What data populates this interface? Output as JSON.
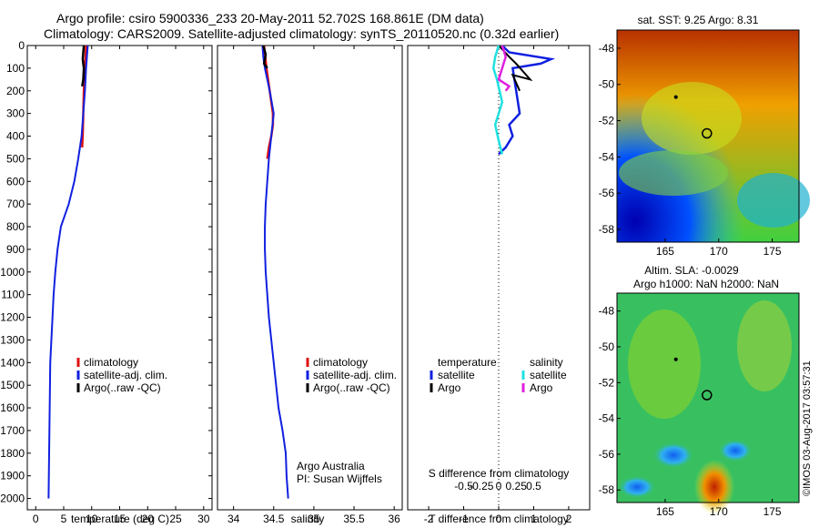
{
  "header": {
    "line1": "Argo profile: csiro 5900336_233 20-May-2011 52.702S 168.861E (DM data)",
    "line2": "Climatology: CARS2009. Satellite-adjusted climatology: synTS_20110520.nc (0.32d earlier)"
  },
  "colors": {
    "climatology": "#e01010",
    "satellite": "#1020e0",
    "argo": "#000000",
    "salinity_satellite": "#20e0e0",
    "salinity_argo": "#e020e0"
  },
  "legend": {
    "climatology": "climatology",
    "satellite_adj": "satellite-adj. clim.",
    "argo_raw": "Argo(..raw -QC)",
    "diff_temperature": "temperature",
    "diff_salinity": "salinity",
    "diff_satellite": "satellite",
    "diff_argo": "Argo"
  },
  "annotations": {
    "argo_australia": "Argo Australia",
    "pi": "PI: Susan Wijffels",
    "imos_stamp": "©IMOS 03-Aug-2017 03:57:31"
  },
  "chart_data": [
    {
      "type": "line",
      "name": "temperature-profile",
      "xlabel": "temperature (deg C)",
      "ylabel": "",
      "xlim": [
        -1.5,
        31.5
      ],
      "ylim": [
        2050,
        0
      ],
      "xticks": [
        0,
        5,
        10,
        15,
        20,
        25,
        30
      ],
      "yticks": [
        0,
        100,
        200,
        300,
        400,
        500,
        600,
        700,
        800,
        900,
        1000,
        1100,
        1200,
        1300,
        1400,
        1500,
        1600,
        1700,
        1800,
        1900,
        2000
      ],
      "series": [
        {
          "name": "climatology",
          "x": [
            9.0,
            8.8,
            8.6,
            8.5,
            8.4,
            8.3
          ],
          "y": [
            0,
            100,
            200,
            300,
            400,
            450
          ]
        },
        {
          "name": "satellite-adj. clim.",
          "x": [
            9.3,
            9.0,
            8.8,
            8.5,
            8.2,
            7.6,
            6.9,
            5.9,
            4.5,
            3.9,
            3.5,
            3.2,
            3.0,
            2.8,
            2.6,
            2.5,
            2.4,
            2.3
          ],
          "y": [
            0,
            100,
            200,
            300,
            400,
            500,
            600,
            700,
            800,
            900,
            1000,
            1100,
            1200,
            1300,
            1400,
            1600,
            1800,
            2000
          ]
        },
        {
          "name": "Argo(..raw -QC)",
          "x": [
            8.6,
            8.4,
            8.6,
            8.5,
            8.3
          ],
          "y": [
            0,
            60,
            100,
            150,
            180
          ]
        }
      ]
    },
    {
      "type": "line",
      "name": "salinity-profile",
      "xlabel": "salinity",
      "ylabel": "",
      "xlim": [
        33.8,
        36.1
      ],
      "ylim": [
        2050,
        0
      ],
      "xticks": [
        34,
        34.5,
        35,
        35.5,
        36
      ],
      "xticklabels": [
        "34",
        "34.5",
        "35",
        "35.5",
        "36"
      ],
      "series": [
        {
          "name": "climatology",
          "x": [
            34.38,
            34.41,
            34.45,
            34.49,
            34.49,
            34.47,
            34.44,
            34.42
          ],
          "y": [
            0,
            100,
            200,
            300,
            350,
            400,
            450,
            500
          ]
        },
        {
          "name": "satellite-adj. clim.",
          "x": [
            34.36,
            34.37,
            34.39,
            34.45,
            34.5,
            34.47,
            34.44,
            34.42,
            34.4,
            34.39,
            34.39,
            34.4,
            34.44,
            34.5,
            34.56,
            34.61,
            34.65,
            34.66,
            34.68
          ],
          "y": [
            0,
            50,
            100,
            200,
            300,
            400,
            500,
            600,
            700,
            800,
            900,
            1000,
            1200,
            1400,
            1600,
            1700,
            1800,
            1900,
            2000
          ]
        },
        {
          "name": "Argo(..raw -QC)",
          "x": [
            34.37,
            34.4,
            34.38,
            34.42
          ],
          "y": [
            0,
            40,
            80,
            100
          ]
        }
      ]
    },
    {
      "type": "line",
      "name": "difference-profile",
      "xlabel": "T difference from climatology",
      "xlabel_top": "S difference from climatology",
      "xlim": [
        -2.6,
        2.6
      ],
      "ylim": [
        2050,
        0
      ],
      "xticks": [
        -2,
        -1,
        0,
        1,
        2
      ],
      "xticks_salinity": [
        "-0.5",
        "-0.25",
        "0",
        "0.25",
        "0.5"
      ],
      "series": [
        {
          "name": "temperature satellite",
          "x": [
            0.1,
            0.3,
            1.5,
            1.2,
            0.4,
            0.5,
            0.6,
            0.3,
            0.4,
            0.2,
            0.0
          ],
          "y": [
            0,
            30,
            60,
            80,
            100,
            200,
            300,
            350,
            400,
            450,
            480
          ]
        },
        {
          "name": "temperature Argo",
          "x": [
            0.0,
            0.3,
            0.5,
            0.9,
            0.4,
            0.6
          ],
          "y": [
            0,
            50,
            80,
            150,
            130,
            200
          ]
        },
        {
          "name": "salinity satellite",
          "x": [
            0.0,
            -0.1,
            -0.15,
            -0.05,
            0.1,
            -0.1,
            0.0,
            0.1
          ],
          "y": [
            0,
            50,
            100,
            150,
            250,
            350,
            420,
            480
          ]
        },
        {
          "name": "salinity Argo",
          "x": [
            0.1,
            0.2,
            0.1,
            0.0,
            0.3,
            0.2
          ],
          "y": [
            0,
            50,
            100,
            150,
            180,
            200
          ]
        }
      ]
    },
    {
      "type": "heatmap",
      "name": "sst-map",
      "title": "sat. SST: 9.25  Argo: 8.31",
      "xlim": [
        160.5,
        177.5
      ],
      "ylim": [
        -58.7,
        -47.0
      ],
      "xticks": [
        165,
        170,
        175
      ],
      "yticks": [
        -48,
        -50,
        -52,
        -54,
        -56,
        -58
      ],
      "float_track": [
        [
          166.0,
          -50.7
        ],
        [
          168.9,
          -52.7
        ]
      ]
    },
    {
      "type": "heatmap",
      "name": "sla-map",
      "title": "Altim. SLA: -0.0029",
      "subtitle": "Argo h1000: NaN  h2000: NaN",
      "xlim": [
        160.5,
        177.5
      ],
      "ylim": [
        -58.7,
        -47.0
      ],
      "xticks": [
        165,
        170,
        175
      ],
      "yticks": [
        -48,
        -50,
        -52,
        -54,
        -56,
        -58
      ],
      "float_track": [
        [
          166.0,
          -50.7
        ],
        [
          168.9,
          -52.7
        ]
      ]
    }
  ]
}
